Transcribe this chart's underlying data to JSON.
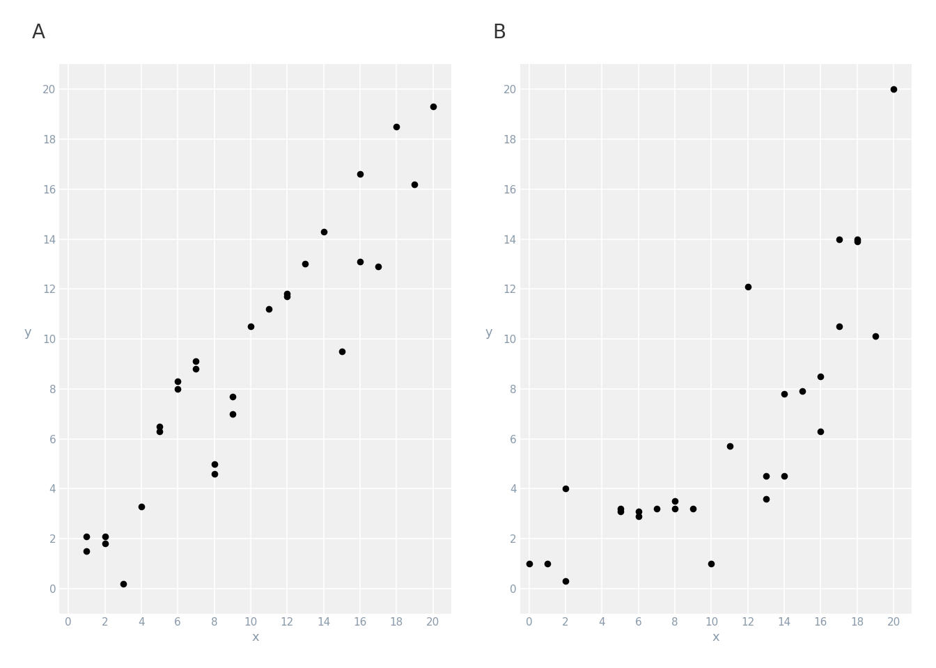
{
  "A_x": [
    1,
    1,
    2,
    2,
    3,
    4,
    5,
    5,
    6,
    6,
    7,
    7,
    8,
    8,
    9,
    9,
    10,
    11,
    12,
    12,
    13,
    14,
    15,
    16,
    16,
    17,
    18,
    19,
    20
  ],
  "A_y": [
    1.5,
    2.1,
    2.1,
    1.8,
    0.2,
    3.3,
    6.5,
    6.3,
    8.0,
    8.3,
    8.8,
    9.1,
    5.0,
    4.6,
    7.0,
    7.7,
    10.5,
    11.2,
    11.8,
    11.7,
    13.0,
    14.3,
    9.5,
    16.6,
    13.1,
    12.9,
    18.5,
    16.2,
    19.3
  ],
  "B_x": [
    0,
    1,
    2,
    2,
    5,
    5,
    6,
    6,
    7,
    8,
    8,
    9,
    10,
    11,
    12,
    13,
    13,
    14,
    14,
    15,
    16,
    16,
    17,
    17,
    18,
    18,
    19,
    20
  ],
  "B_y": [
    1.0,
    1.0,
    0.3,
    4.0,
    3.1,
    3.2,
    3.1,
    2.9,
    3.2,
    3.5,
    3.2,
    3.2,
    1.0,
    5.7,
    12.1,
    3.6,
    4.5,
    4.5,
    7.8,
    7.9,
    8.5,
    6.3,
    10.5,
    14.0,
    14.0,
    13.9,
    10.1,
    20.0
  ],
  "dot_color": "#000000",
  "dot_size": 35,
  "background_color": "#f0f0f0",
  "grid_color": "#ffffff",
  "label_A": "A",
  "label_B": "B",
  "xlabel": "x",
  "ylabel": "y",
  "xlim": [
    -0.5,
    21
  ],
  "ylim": [
    -1,
    21
  ],
  "xticks": [
    0,
    2,
    4,
    6,
    8,
    10,
    12,
    14,
    16,
    18,
    20
  ],
  "yticks": [
    0,
    2,
    4,
    6,
    8,
    10,
    12,
    14,
    16,
    18,
    20
  ],
  "tick_color": "#8899aa",
  "label_fontsize": 13,
  "panel_label_fontsize": 20
}
